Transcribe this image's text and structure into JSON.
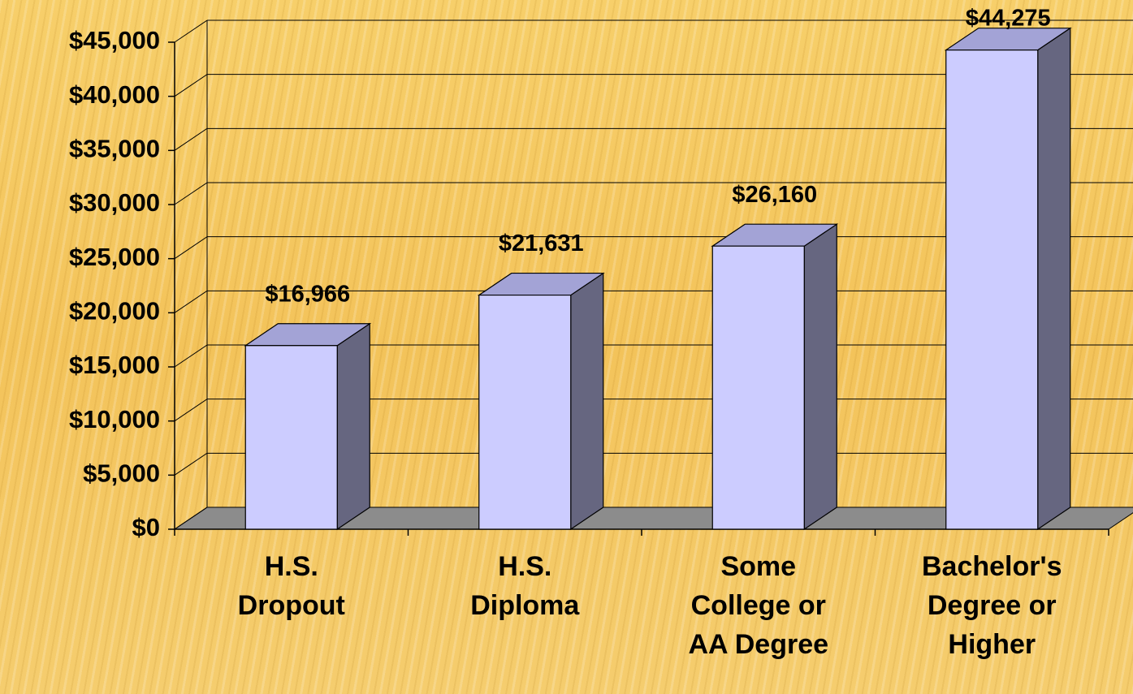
{
  "chart_data": {
    "type": "bar3d",
    "categories": [
      "H.S. Dropout",
      "H.S. Diploma",
      "Some College or AA Degree",
      "Bachelor's Degree or Higher"
    ],
    "values": [
      16966,
      21631,
      26160,
      44275
    ],
    "value_labels": [
      "$16,966",
      "$21,631",
      "$26,160",
      "$44,275"
    ],
    "colors": {
      "front": "#ccccff",
      "top": "#a3a3d6",
      "side": "#666680",
      "floor": "#8c8c8c"
    },
    "ylim": [
      0,
      45000
    ],
    "yticks": [
      {
        "value": 0,
        "label": "$0"
      },
      {
        "value": 5000,
        "label": "$5,000"
      },
      {
        "value": 10000,
        "label": "$10,000"
      },
      {
        "value": 15000,
        "label": "$15,000"
      },
      {
        "value": 20000,
        "label": "$20,000"
      },
      {
        "value": 25000,
        "label": "$25,000"
      },
      {
        "value": 30000,
        "label": "$30,000"
      },
      {
        "value": 35000,
        "label": "$35,000"
      },
      {
        "value": 40000,
        "label": "$40,000"
      },
      {
        "value": 45000,
        "label": "$45,000"
      }
    ],
    "grid": true
  }
}
